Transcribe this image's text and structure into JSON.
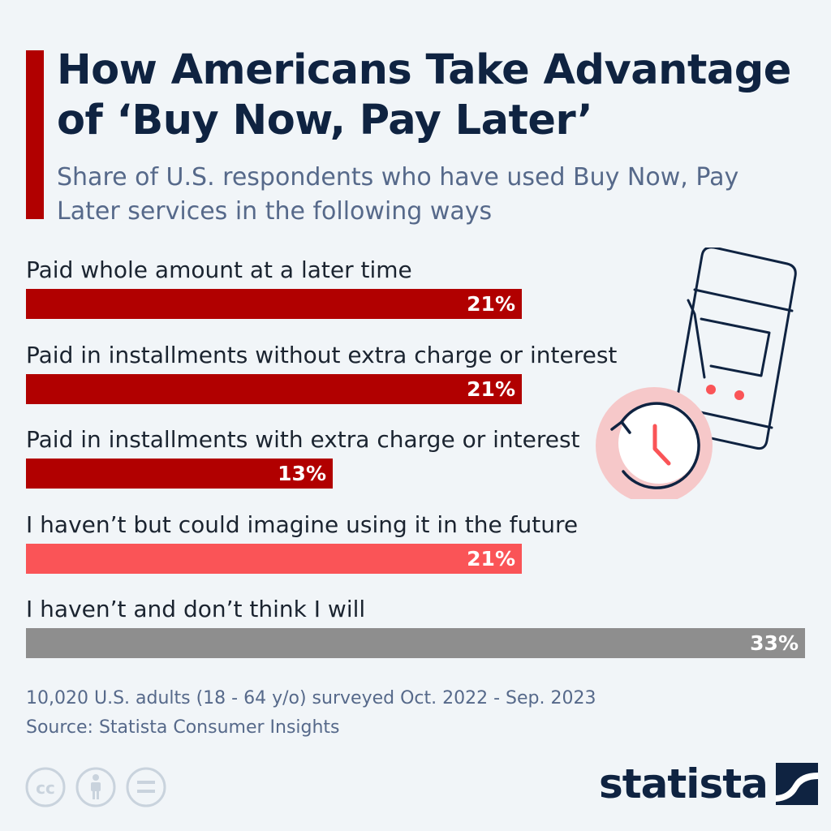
{
  "title": "How Americans Take Advantage of ‘Buy Now, Pay Later’",
  "subtitle": "Share of U.S. respondents who have used Buy Now, Pay Later services in the following ways",
  "colors": {
    "used": "#b10000",
    "could_imagine": "#fa5457",
    "wont": "#8e8e8e",
    "title": "#0f2341",
    "accent": "#b10000"
  },
  "chart_data": {
    "type": "bar",
    "orientation": "horizontal",
    "categories": [
      "Paid whole amount at a later time",
      "Paid in installments without extra charge or interest",
      "Paid in installments with extra charge or interest",
      "I haven’t but could imagine using it in the future",
      "I haven’t and don’t think I will"
    ],
    "values": [
      21,
      21,
      13,
      21,
      33
    ],
    "value_labels": [
      "21%",
      "21%",
      "13%",
      "21%",
      "33%"
    ],
    "bar_colors": [
      "#b10000",
      "#b10000",
      "#b10000",
      "#fa5457",
      "#8e8e8e"
    ],
    "xlim": [
      0,
      33
    ],
    "grid": false
  },
  "footnote": {
    "sample": "10,020 U.S. adults (18 - 64 y/o) surveyed Oct. 2022 - Sep. 2023",
    "source": "Source: Statista Consumer Insights"
  },
  "icons": [
    "smartphone-shopping-cart-icon",
    "clock-refresh-icon",
    "cc-license-icon",
    "attribution-icon",
    "no-derivatives-icon",
    "statista-logo-mark"
  ],
  "logo": {
    "text": "statista"
  }
}
